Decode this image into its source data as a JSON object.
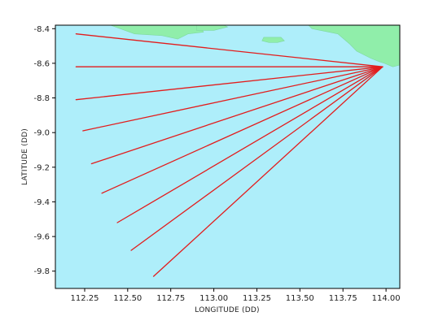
{
  "chart_data": {
    "type": "line",
    "xlabel": "LONGITUDE (DD)",
    "ylabel": "LATITUDE (DD)",
    "xlim": [
      112.08,
      114.08
    ],
    "ylim": [
      -9.9,
      -8.38
    ],
    "x_ticks": [
      "112.25",
      "112.50",
      "112.75",
      "113.00",
      "113.25",
      "113.50",
      "113.75",
      "114.00"
    ],
    "y_ticks": [
      "-8.4",
      "-8.6",
      "-8.8",
      "-9.0",
      "-9.2",
      "-9.4",
      "-9.6",
      "-9.8"
    ],
    "colors": {
      "ocean": "#aeeefa",
      "land": "#90eeaa",
      "land_edge": "#7fd9a0",
      "ray": "#e31c1c"
    },
    "origin": [
      113.98,
      -8.62
    ],
    "series": [
      {
        "x": [
          113.98,
          112.2
        ],
        "y": [
          -8.62,
          -8.43
        ]
      },
      {
        "x": [
          113.98,
          112.2
        ],
        "y": [
          -8.62,
          -8.62
        ]
      },
      {
        "x": [
          113.98,
          112.2
        ],
        "y": [
          -8.62,
          -8.81
        ]
      },
      {
        "x": [
          113.98,
          112.24
        ],
        "y": [
          -8.62,
          -8.99
        ]
      },
      {
        "x": [
          113.98,
          112.29
        ],
        "y": [
          -8.62,
          -9.18
        ]
      },
      {
        "x": [
          113.98,
          112.35
        ],
        "y": [
          -8.62,
          -9.35
        ]
      },
      {
        "x": [
          113.98,
          112.44
        ],
        "y": [
          -8.62,
          -9.52
        ]
      },
      {
        "x": [
          113.98,
          112.52
        ],
        "y": [
          -8.62,
          -9.68
        ]
      },
      {
        "x": [
          113.98,
          112.65
        ],
        "y": [
          -8.62,
          -9.83
        ]
      }
    ],
    "land_polygons": [
      [
        [
          112.4,
          -8.38
        ],
        [
          112.54,
          -8.43
        ],
        [
          112.7,
          -8.44
        ],
        [
          112.79,
          -8.46
        ],
        [
          112.85,
          -8.43
        ],
        [
          112.94,
          -8.42
        ],
        [
          112.92,
          -8.38
        ]
      ],
      [
        [
          112.9,
          -8.38
        ],
        [
          112.9,
          -8.41
        ],
        [
          113.0,
          -8.41
        ],
        [
          113.08,
          -8.39
        ],
        [
          113.06,
          -8.38
        ]
      ],
      [
        [
          113.55,
          -8.38
        ],
        [
          113.57,
          -8.4
        ],
        [
          113.62,
          -8.41
        ],
        [
          113.72,
          -8.43
        ],
        [
          113.79,
          -8.49
        ],
        [
          113.83,
          -8.53
        ],
        [
          113.91,
          -8.57
        ],
        [
          113.96,
          -8.59
        ],
        [
          113.99,
          -8.6
        ],
        [
          114.04,
          -8.62
        ],
        [
          114.08,
          -8.61
        ],
        [
          114.08,
          -8.38
        ]
      ],
      [
        [
          113.28,
          -8.47
        ],
        [
          113.32,
          -8.48
        ],
        [
          113.37,
          -8.48
        ],
        [
          113.41,
          -8.47
        ],
        [
          113.39,
          -8.45
        ],
        [
          113.33,
          -8.45
        ],
        [
          113.29,
          -8.45
        ]
      ]
    ]
  }
}
